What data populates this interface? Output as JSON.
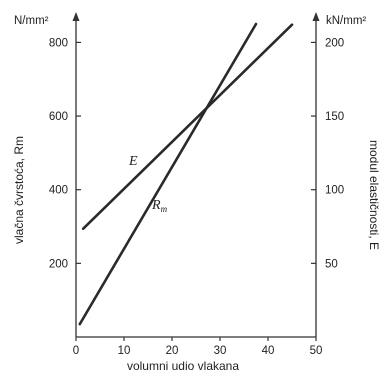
{
  "chart_data": {
    "type": "line",
    "x": {
      "label": "volumni udio vlakana",
      "range": [
        0,
        50
      ],
      "ticks": [
        0,
        10,
        20,
        30,
        40,
        50
      ]
    },
    "y_left": {
      "label": "vlačna čvrstoća, Rm",
      "unit": "N/mm²",
      "range": [
        0,
        850
      ],
      "ticks": [
        200,
        400,
        600,
        800
      ]
    },
    "y_right": {
      "label": "modul elastičnosti, E",
      "unit": "kN/mm²",
      "range": [
        0,
        212.5
      ],
      "ticks": [
        50,
        100,
        150,
        200
      ]
    },
    "series": [
      {
        "name": "E",
        "axis": "right",
        "x": [
          1.5,
          45
        ],
        "y": [
          73.5,
          212
        ]
      },
      {
        "name": "Rm",
        "axis": "left",
        "x": [
          0.8,
          37.5
        ],
        "y": [
          35,
          850
        ]
      }
    ],
    "grid": false
  }
}
